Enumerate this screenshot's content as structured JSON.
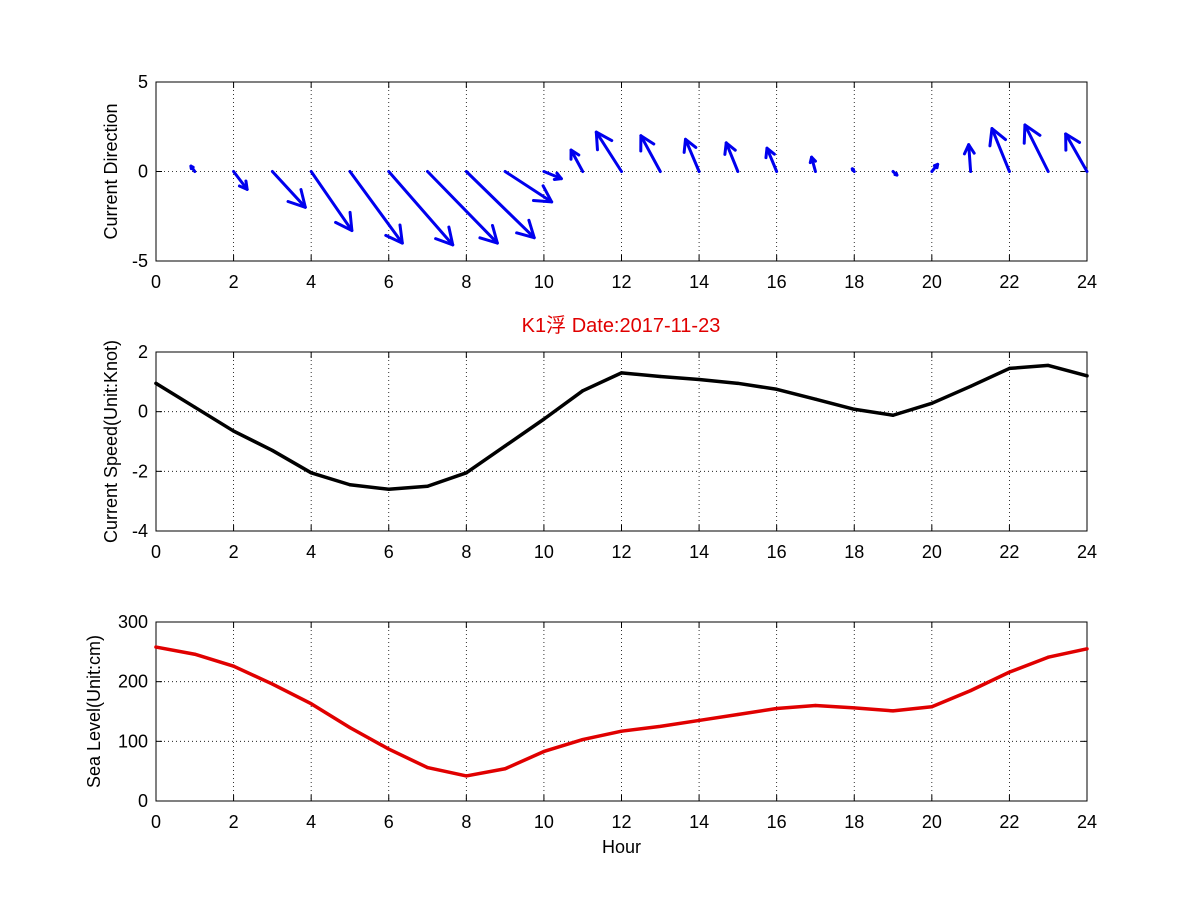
{
  "figure_title": "K1浮    Date:2017-11-23",
  "colors": {
    "direction": "#0000ee",
    "speed": "#000000",
    "sea_level": "#e00000",
    "title": "#e00000"
  },
  "chart_data": [
    {
      "type": "quiver",
      "ylabel": "Current Direction",
      "xlabel": "",
      "xlim": [
        0,
        24
      ],
      "ylim": [
        -5,
        5
      ],
      "xticks": [
        0,
        2,
        4,
        6,
        8,
        10,
        12,
        14,
        16,
        18,
        20,
        22,
        24
      ],
      "yticks": [
        -5,
        0,
        5
      ],
      "grid": true,
      "series": [
        {
          "x": [
            1,
            2,
            3,
            4,
            5,
            6,
            7,
            8,
            9,
            10,
            11,
            12,
            13,
            14,
            15,
            16,
            17,
            18,
            19,
            20,
            21,
            22,
            23,
            24
          ],
          "u": [
            -0.1,
            0.35,
            0.85,
            1.05,
            1.35,
            1.65,
            1.8,
            1.75,
            1.2,
            0.45,
            -0.3,
            -0.65,
            -0.5,
            -0.35,
            -0.3,
            -0.25,
            -0.1,
            -0.05,
            0.1,
            0.15,
            -0.05,
            -0.45,
            -0.6,
            -0.55
          ],
          "v": [
            0.3,
            -1.0,
            -2.0,
            -3.3,
            -4.0,
            -4.1,
            -4.0,
            -3.7,
            -1.7,
            -0.4,
            1.2,
            2.2,
            2.0,
            1.8,
            1.6,
            1.3,
            0.8,
            0.15,
            -0.2,
            0.4,
            1.5,
            2.4,
            2.6,
            2.1
          ]
        }
      ]
    },
    {
      "type": "line",
      "ylabel": "Current Speed(Unit:Knot)",
      "xlabel": "",
      "xlim": [
        0,
        24
      ],
      "ylim": [
        -4,
        2
      ],
      "xticks": [
        0,
        2,
        4,
        6,
        8,
        10,
        12,
        14,
        16,
        18,
        20,
        22,
        24
      ],
      "yticks": [
        -4,
        -2,
        0,
        2
      ],
      "grid": true,
      "x": [
        0,
        1,
        2,
        3,
        4,
        5,
        6,
        7,
        8,
        9,
        10,
        11,
        12,
        13,
        14,
        15,
        16,
        17,
        18,
        19,
        20,
        21,
        22,
        23,
        24
      ],
      "series": [
        {
          "values": [
            0.95,
            0.15,
            -0.65,
            -1.3,
            -2.05,
            -2.45,
            -2.6,
            -2.5,
            -2.05,
            -1.15,
            -0.25,
            0.7,
            1.3,
            1.18,
            1.08,
            0.95,
            0.75,
            0.42,
            0.08,
            -0.12,
            0.28,
            0.85,
            1.45,
            1.55,
            1.2
          ]
        }
      ]
    },
    {
      "type": "line",
      "ylabel": "Sea Level(Unit:cm)",
      "xlabel": "Hour",
      "xlim": [
        0,
        24
      ],
      "ylim": [
        0,
        300
      ],
      "xticks": [
        0,
        2,
        4,
        6,
        8,
        10,
        12,
        14,
        16,
        18,
        20,
        22,
        24
      ],
      "yticks": [
        0,
        100,
        200,
        300
      ],
      "grid": true,
      "x": [
        0,
        1,
        2,
        3,
        4,
        5,
        6,
        7,
        8,
        9,
        10,
        11,
        12,
        13,
        14,
        15,
        16,
        17,
        18,
        19,
        20,
        21,
        22,
        23,
        24
      ],
      "series": [
        {
          "values": [
            258,
            246,
            226,
            196,
            163,
            123,
            87,
            56,
            42,
            54,
            83,
            103,
            117,
            125,
            135,
            145,
            155,
            160,
            156,
            151,
            158,
            185,
            216,
            241,
            255
          ]
        }
      ]
    }
  ]
}
